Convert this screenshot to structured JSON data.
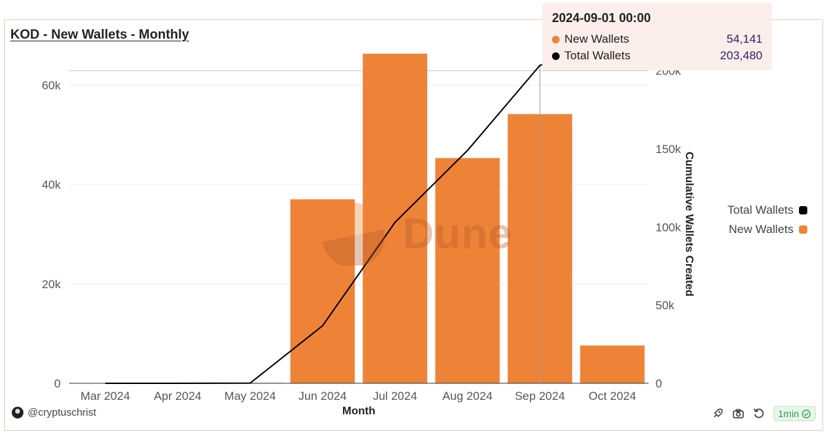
{
  "title": "KOD - New Wallets - Monthly",
  "author": "@cryptuschrist",
  "refresh_label": "1min",
  "watermark": "Dune",
  "colors": {
    "new_wallets": "#ee8337",
    "total_wallets": "#000000",
    "frame": "#efc9b4",
    "tooltip_bg": "#fbeeeb"
  },
  "tooltip": {
    "title": "2024-09-01 00:00",
    "rows": [
      {
        "label": "New Wallets",
        "value": "54,141"
      },
      {
        "label": "Total Wallets",
        "value": "203,480"
      }
    ]
  },
  "legend": [
    {
      "label": "Total Wallets"
    },
    {
      "label": "New Wallets"
    }
  ],
  "icons": [
    "user-avatar-icon",
    "rocket-icon",
    "camera-icon",
    "refresh-icon",
    "check-circle-icon"
  ],
  "chart_data": {
    "type": "bar",
    "categories": [
      "Mar 2024",
      "Apr 2024",
      "May 2024",
      "Jun 2024",
      "Jul 2024",
      "Aug 2024",
      "Sep 2024",
      "Oct 2024"
    ],
    "xlabel": "Month",
    "ylabel_right": "Cumulative Wallets Created",
    "ylim_left": [
      0,
      66000
    ],
    "ylim_right": [
      0,
      210000
    ],
    "yticks_left": [
      0,
      20000,
      40000,
      60000
    ],
    "yticks_left_labels": [
      "0",
      "20k",
      "40k",
      "60k"
    ],
    "yticks_right": [
      0,
      50000,
      100000,
      150000,
      200000
    ],
    "yticks_right_labels": [
      "0",
      "50k",
      "100k",
      "150k",
      "200k"
    ],
    "series": [
      {
        "name": "New Wallets",
        "type": "bar",
        "axis": "left",
        "values": [
          0,
          0,
          100,
          37000,
          66300,
          45300,
          54141,
          7600
        ]
      },
      {
        "name": "Total Wallets",
        "type": "line",
        "axis": "right",
        "values": [
          0,
          0,
          100,
          36800,
          103000,
          149000,
          203480,
          211000
        ]
      }
    ],
    "highlight_category": "Sep 2024",
    "legend_position": "right",
    "grid": true
  }
}
